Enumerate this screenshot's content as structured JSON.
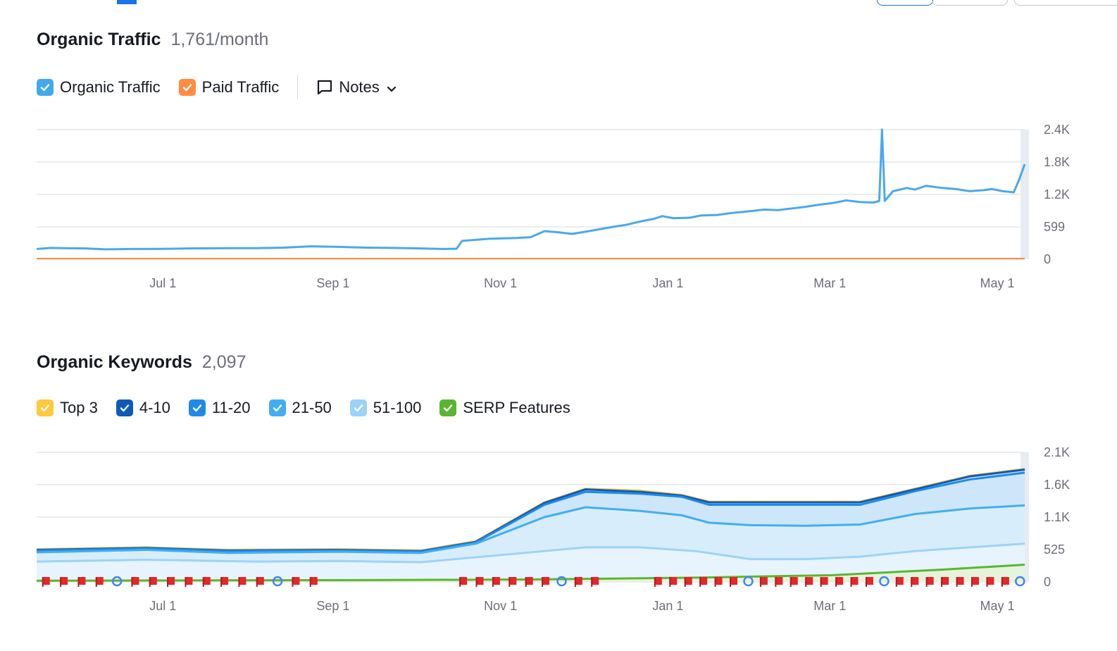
{
  "traffic": {
    "title": "Organic Traffic",
    "value": "1,761/month",
    "legend": {
      "organic_label": "Organic Traffic",
      "paid_label": "Paid Traffic",
      "notes_label": "Notes"
    }
  },
  "keywords": {
    "title": "Organic Keywords",
    "value": "2,097",
    "legend": [
      {
        "label": "Top 3",
        "color": "#ffc83d"
      },
      {
        "label": "4-10",
        "color": "#0e5ab8"
      },
      {
        "label": "11-20",
        "color": "#1f8ae6"
      },
      {
        "label": "21-50",
        "color": "#42aef2"
      },
      {
        "label": "51-100",
        "color": "#9cd2fa"
      },
      {
        "label": "SERP Features",
        "color": "#5cb531"
      }
    ]
  },
  "colors": {
    "organic": "#4ba8ec",
    "paid": "#ff8c42",
    "grid": "#e4e6ea",
    "serp_flag": "#e6262a"
  },
  "chart_data": [
    {
      "type": "line",
      "title": "Organic Traffic",
      "x_ticks": [
        "Jul 1",
        "Sep 1",
        "Nov 1",
        "Jan 1",
        "Mar 1",
        "May 1"
      ],
      "y_ticks": [
        "2.4K",
        "1.8K",
        "1.2K",
        "599",
        "0"
      ],
      "ylim": [
        0,
        2400
      ],
      "x_range_days": [
        0,
        360
      ],
      "x_tick_days": [
        46,
        108,
        169,
        230,
        289,
        350
      ],
      "series": [
        {
          "name": "Organic Traffic",
          "points": [
            [
              0,
              190
            ],
            [
              5,
              210
            ],
            [
              10,
              205
            ],
            [
              18,
              200
            ],
            [
              25,
              185
            ],
            [
              35,
              190
            ],
            [
              45,
              192
            ],
            [
              55,
              200
            ],
            [
              70,
              205
            ],
            [
              80,
              205
            ],
            [
              90,
              215
            ],
            [
              100,
              240
            ],
            [
              110,
              230
            ],
            [
              120,
              215
            ],
            [
              130,
              210
            ],
            [
              140,
              200
            ],
            [
              148,
              190
            ],
            [
              153,
              195
            ],
            [
              155,
              340
            ],
            [
              165,
              380
            ],
            [
              175,
              395
            ],
            [
              180,
              410
            ],
            [
              185,
              520
            ],
            [
              190,
              500
            ],
            [
              195,
              470
            ],
            [
              200,
              510
            ],
            [
              210,
              600
            ],
            [
              215,
              640
            ],
            [
              220,
              700
            ],
            [
              225,
              750
            ],
            [
              228,
              800
            ],
            [
              232,
              760
            ],
            [
              238,
              770
            ],
            [
              242,
              810
            ],
            [
              248,
              820
            ],
            [
              252,
              850
            ],
            [
              256,
              870
            ],
            [
              260,
              890
            ],
            [
              265,
              920
            ],
            [
              270,
              910
            ],
            [
              275,
              940
            ],
            [
              280,
              970
            ],
            [
              285,
              1010
            ],
            [
              290,
              1040
            ],
            [
              295,
              1090
            ],
            [
              300,
              1060
            ],
            [
              305,
              1050
            ],
            [
              307,
              1080
            ],
            [
              308,
              2400
            ],
            [
              309,
              1080
            ],
            [
              312,
              1260
            ],
            [
              317,
              1320
            ],
            [
              320,
              1290
            ],
            [
              324,
              1360
            ],
            [
              330,
              1320
            ],
            [
              335,
              1300
            ],
            [
              340,
              1260
            ],
            [
              345,
              1280
            ],
            [
              348,
              1300
            ],
            [
              352,
              1260
            ],
            [
              356,
              1240
            ],
            [
              358,
              1480
            ],
            [
              360,
              1761
            ]
          ]
        },
        {
          "name": "Paid Traffic",
          "points": [
            [
              0,
              0
            ],
            [
              360,
              0
            ]
          ]
        }
      ]
    },
    {
      "type": "area",
      "title": "Organic Keywords",
      "x_ticks": [
        "Jul 1",
        "Sep 1",
        "Nov 1",
        "Jan 1",
        "Mar 1",
        "May 1"
      ],
      "y_ticks": [
        "2.1K",
        "1.6K",
        "1.1K",
        "525",
        "0"
      ],
      "ylim": [
        0,
        2100
      ],
      "x_range_days": [
        0,
        360
      ],
      "x_tick_days": [
        46,
        108,
        169,
        230,
        289,
        350
      ],
      "stacked": true,
      "series": [
        {
          "name": "SERP Features",
          "points": [
            [
              0,
              20
            ],
            [
              60,
              25
            ],
            [
              120,
              30
            ],
            [
              180,
              40
            ],
            [
              240,
              70
            ],
            [
              290,
              110
            ],
            [
              330,
              200
            ],
            [
              360,
              280
            ]
          ]
        },
        {
          "name": "51-100",
          "points": [
            [
              0,
              330
            ],
            [
              40,
              360
            ],
            [
              80,
              330
            ],
            [
              110,
              340
            ],
            [
              140,
              320
            ],
            [
              180,
              480
            ],
            [
              200,
              560
            ],
            [
              220,
              560
            ],
            [
              240,
              500
            ],
            [
              260,
              370
            ],
            [
              280,
              370
            ],
            [
              300,
              410
            ],
            [
              320,
              500
            ],
            [
              340,
              560
            ],
            [
              360,
              620
            ]
          ]
        },
        {
          "name": "21-50",
          "points": [
            [
              0,
              480
            ],
            [
              40,
              520
            ],
            [
              70,
              470
            ],
            [
              110,
              490
            ],
            [
              140,
              470
            ],
            [
              160,
              620
            ],
            [
              185,
              1050
            ],
            [
              200,
              1210
            ],
            [
              220,
              1150
            ],
            [
              235,
              1080
            ],
            [
              245,
              960
            ],
            [
              260,
              920
            ],
            [
              280,
              910
            ],
            [
              300,
              930
            ],
            [
              320,
              1100
            ],
            [
              340,
              1190
            ],
            [
              360,
              1240
            ]
          ]
        },
        {
          "name": "11-20",
          "points": [
            [
              0,
              510
            ],
            [
              40,
              540
            ],
            [
              70,
              500
            ],
            [
              110,
              510
            ],
            [
              140,
              490
            ],
            [
              160,
              640
            ],
            [
              185,
              1250
            ],
            [
              200,
              1460
            ],
            [
              220,
              1430
            ],
            [
              235,
              1380
            ],
            [
              245,
              1250
            ],
            [
              260,
              1250
            ],
            [
              280,
              1250
            ],
            [
              300,
              1250
            ],
            [
              320,
              1470
            ],
            [
              340,
              1660
            ],
            [
              360,
              1770
            ]
          ]
        },
        {
          "name": "4-10",
          "points": [
            [
              0,
              520
            ],
            [
              40,
              550
            ],
            [
              70,
              510
            ],
            [
              110,
              520
            ],
            [
              140,
              500
            ],
            [
              160,
              650
            ],
            [
              185,
              1280
            ],
            [
              200,
              1500
            ],
            [
              220,
              1460
            ],
            [
              235,
              1400
            ],
            [
              245,
              1290
            ],
            [
              260,
              1290
            ],
            [
              280,
              1290
            ],
            [
              300,
              1290
            ],
            [
              320,
              1500
            ],
            [
              340,
              1710
            ],
            [
              360,
              1820
            ]
          ]
        },
        {
          "name": "Top 3",
          "points": [
            [
              0,
              530
            ],
            [
              40,
              560
            ],
            [
              70,
              520
            ],
            [
              110,
              530
            ],
            [
              140,
              510
            ],
            [
              160,
              660
            ],
            [
              185,
              1290
            ],
            [
              200,
              1510
            ],
            [
              220,
              1480
            ],
            [
              235,
              1410
            ],
            [
              245,
              1300
            ],
            [
              260,
              1300
            ],
            [
              280,
              1300
            ],
            [
              300,
              1300
            ],
            [
              320,
              1510
            ],
            [
              340,
              1720
            ],
            [
              360,
              1830
            ]
          ]
        }
      ],
      "annotation_count_note": "SERP feature flags along the baseline"
    }
  ]
}
